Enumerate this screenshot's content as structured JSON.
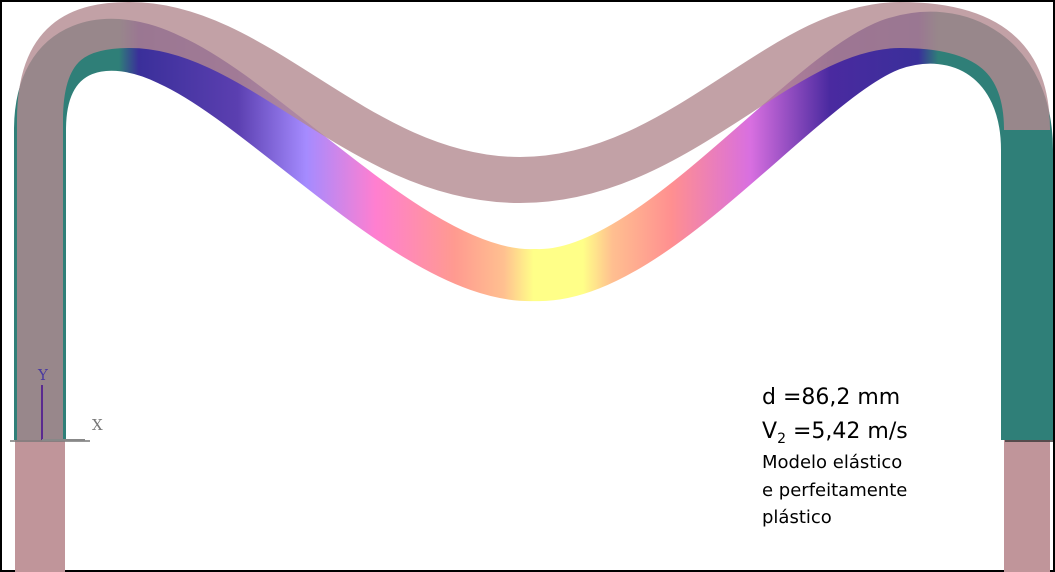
{
  "annotation": {
    "displacement": "d =86,2 mm",
    "velocity_symbol": "V",
    "velocity_subscript": "2",
    "velocity_value": "=5,42 m/s",
    "model_lines": [
      "Modelo elástico",
      "e perfeitamente",
      "plástico"
    ]
  },
  "axes": {
    "y": "Y",
    "x": "X"
  }
}
